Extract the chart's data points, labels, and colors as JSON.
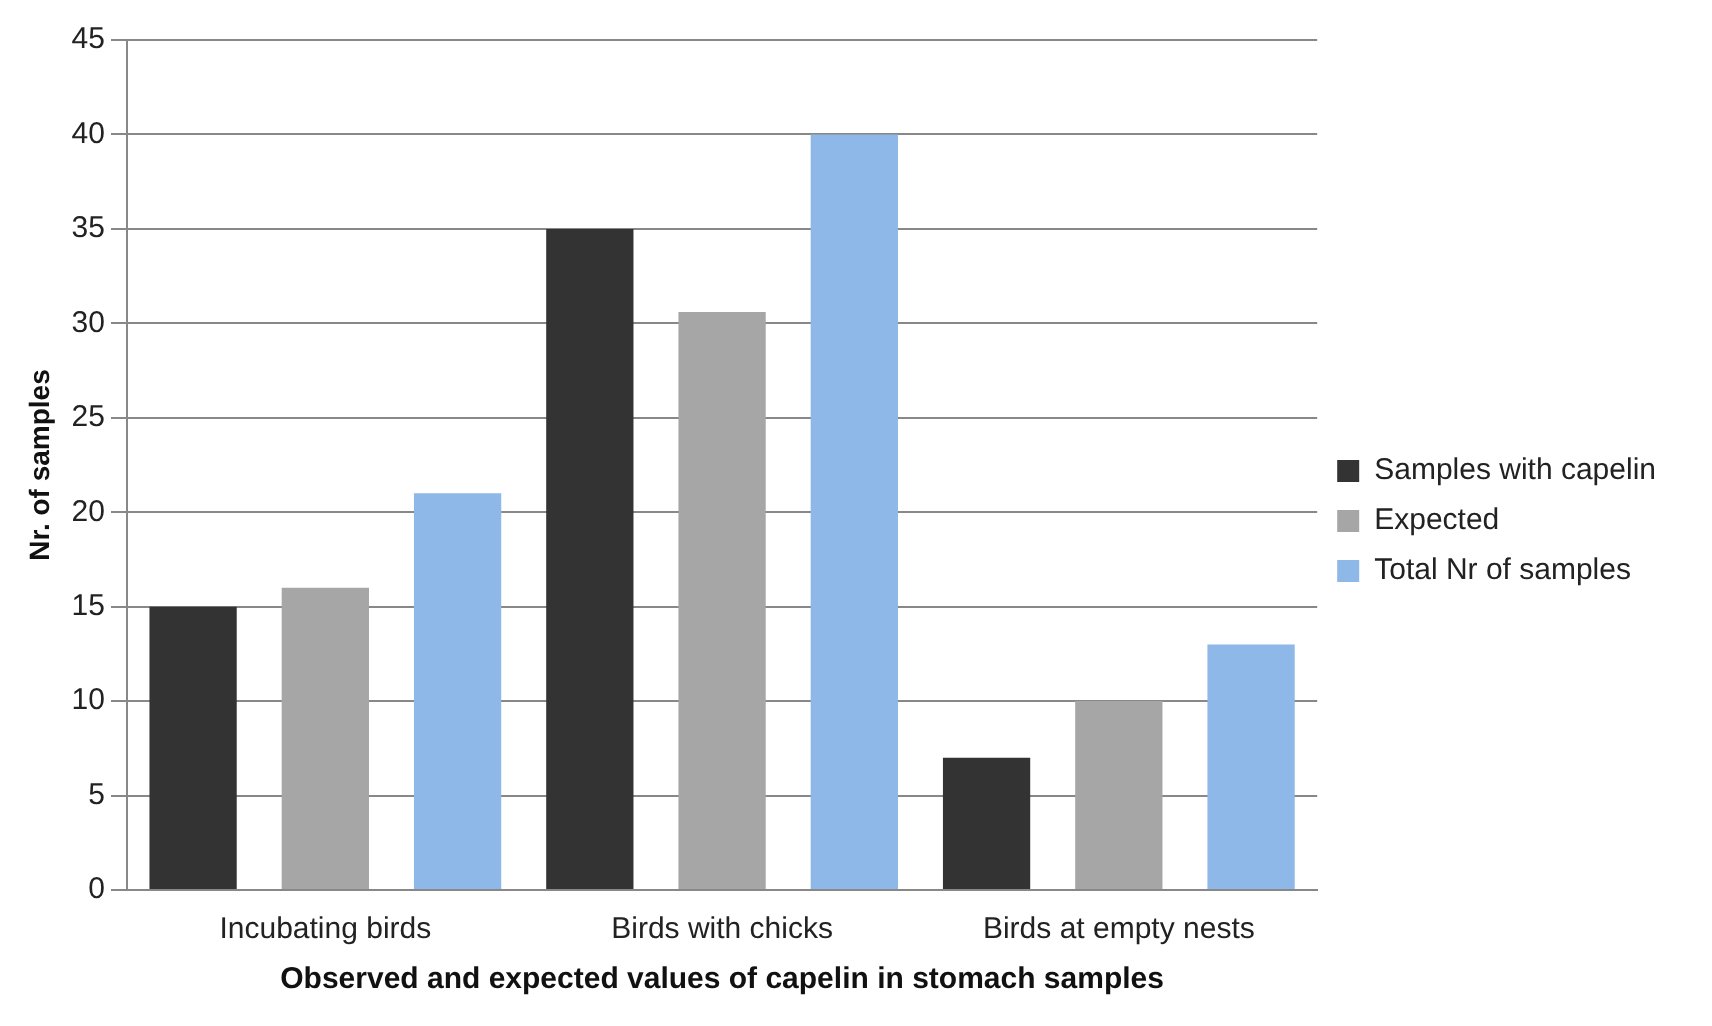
{
  "chart_data": {
    "type": "bar",
    "xlabel": "Observed and expected values of capelin in stomach samples",
    "ylabel": "Nr. of samples",
    "categories": [
      "Incubating birds",
      "Birds with chicks",
      "Birds at empty nests"
    ],
    "series": [
      {
        "name": "Samples with capelin",
        "color": "#333333",
        "values": [
          15,
          35,
          7
        ]
      },
      {
        "name": "Expected",
        "color": "#a6a6a6",
        "values": [
          16,
          30.6,
          10
        ]
      },
      {
        "name": "Total Nr of samples",
        "color": "#8db8e8",
        "values": [
          21,
          40,
          13
        ]
      }
    ],
    "ylim": [
      0,
      45
    ],
    "yticks": [
      0,
      5,
      10,
      15,
      20,
      25,
      30,
      35,
      40,
      45
    ],
    "grid": "y",
    "legend": "right"
  }
}
